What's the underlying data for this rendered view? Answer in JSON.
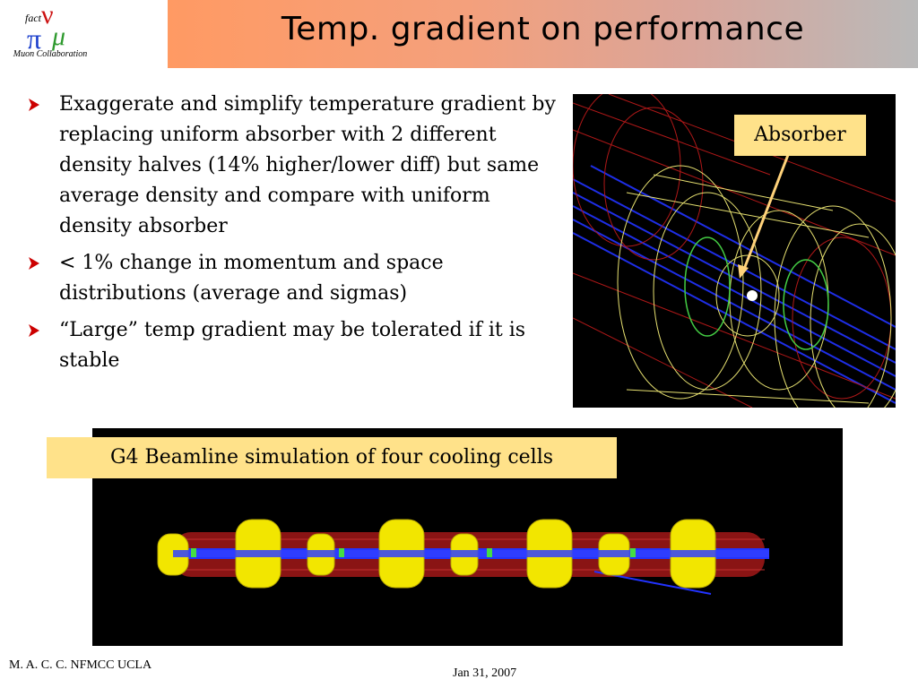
{
  "logo": {
    "text": "Muon Collaboration",
    "glyph_fact": "fact",
    "glyph_nu": "ν",
    "glyph_pi": "π",
    "glyph_mu": "μ"
  },
  "title": "Temp. gradient on performance",
  "bullets": [
    "Exaggerate and simplify temperature gradient by replacing uniform absorber with 2 different density halves (14% higher/lower diff) but same average density and compare with uniform density absorber",
    "< 1% change in momentum and space distributions (average and sigmas)",
    "“Large” temp gradient may be tolerated if it is stable"
  ],
  "labels": {
    "absorber": "Absorber",
    "simulation": "G4 Beamline simulation of four cooling cells"
  },
  "footer": {
    "left": "M. A. C. C.  NFMCC UCLA",
    "date": "Jan 31, 2007"
  },
  "colors": {
    "bullet_arrow": "#cc0000",
    "label_bg": "#ffe28a",
    "title_gradient_start": "#ff9a63",
    "title_gradient_end": "#b9b9b9"
  }
}
